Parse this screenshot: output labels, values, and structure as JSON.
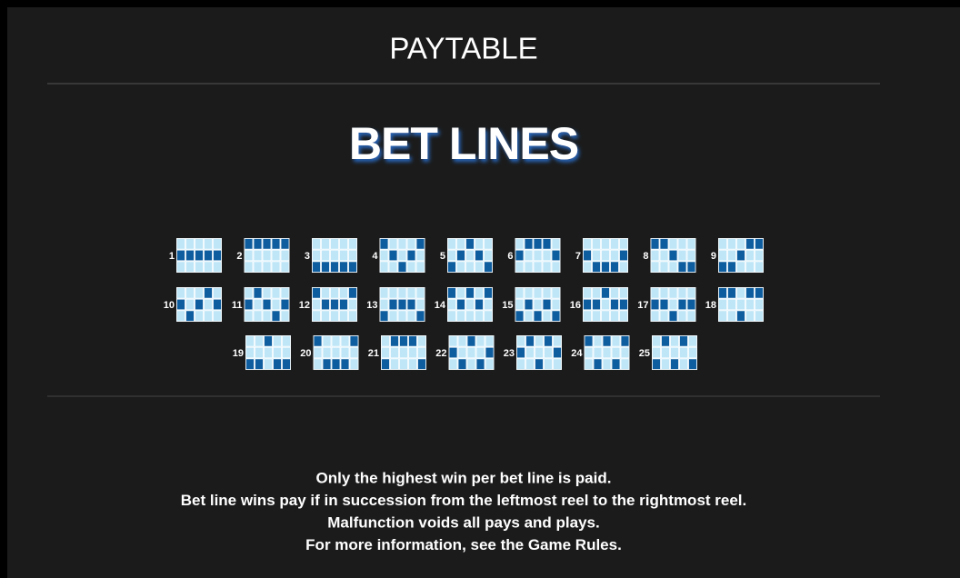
{
  "title": "PAYTABLE",
  "heading": "BET LINES",
  "bet_lines": [
    {
      "number": 1,
      "pattern": [
        1,
        1,
        1,
        1,
        1
      ]
    },
    {
      "number": 2,
      "pattern": [
        0,
        0,
        0,
        0,
        0
      ]
    },
    {
      "number": 3,
      "pattern": [
        2,
        2,
        2,
        2,
        2
      ]
    },
    {
      "number": 4,
      "pattern": [
        0,
        1,
        2,
        1,
        0
      ]
    },
    {
      "number": 5,
      "pattern": [
        2,
        1,
        0,
        1,
        2
      ]
    },
    {
      "number": 6,
      "pattern": [
        1,
        0,
        0,
        0,
        1
      ]
    },
    {
      "number": 7,
      "pattern": [
        1,
        2,
        2,
        2,
        1
      ]
    },
    {
      "number": 8,
      "pattern": [
        0,
        0,
        1,
        2,
        2
      ]
    },
    {
      "number": 9,
      "pattern": [
        2,
        2,
        1,
        0,
        0
      ]
    },
    {
      "number": 10,
      "pattern": [
        1,
        2,
        1,
        0,
        1
      ]
    },
    {
      "number": 11,
      "pattern": [
        1,
        0,
        1,
        2,
        1
      ]
    },
    {
      "number": 12,
      "pattern": [
        0,
        1,
        1,
        1,
        0
      ]
    },
    {
      "number": 13,
      "pattern": [
        2,
        1,
        1,
        1,
        2
      ]
    },
    {
      "number": 14,
      "pattern": [
        0,
        1,
        0,
        1,
        0
      ]
    },
    {
      "number": 15,
      "pattern": [
        2,
        1,
        2,
        1,
        2
      ]
    },
    {
      "number": 16,
      "pattern": [
        1,
        1,
        0,
        1,
        1
      ]
    },
    {
      "number": 17,
      "pattern": [
        1,
        1,
        2,
        1,
        1
      ]
    },
    {
      "number": 18,
      "pattern": [
        0,
        0,
        2,
        0,
        0
      ]
    },
    {
      "number": 19,
      "pattern": [
        2,
        2,
        0,
        2,
        2
      ]
    },
    {
      "number": 20,
      "pattern": [
        0,
        2,
        2,
        2,
        0
      ]
    },
    {
      "number": 21,
      "pattern": [
        2,
        0,
        0,
        0,
        2
      ]
    },
    {
      "number": 22,
      "pattern": [
        1,
        2,
        0,
        2,
        1
      ]
    },
    {
      "number": 23,
      "pattern": [
        1,
        0,
        2,
        0,
        1
      ]
    },
    {
      "number": 24,
      "pattern": [
        0,
        2,
        0,
        2,
        0
      ]
    },
    {
      "number": 25,
      "pattern": [
        2,
        0,
        2,
        0,
        2
      ]
    }
  ],
  "notes": [
    "Only the highest win per bet line is paid.",
    "Bet line wins pay if in succession from the leftmost reel to the rightmost reel.",
    "Malfunction voids all pays and plays.",
    "For more information, see the Game Rules."
  ]
}
